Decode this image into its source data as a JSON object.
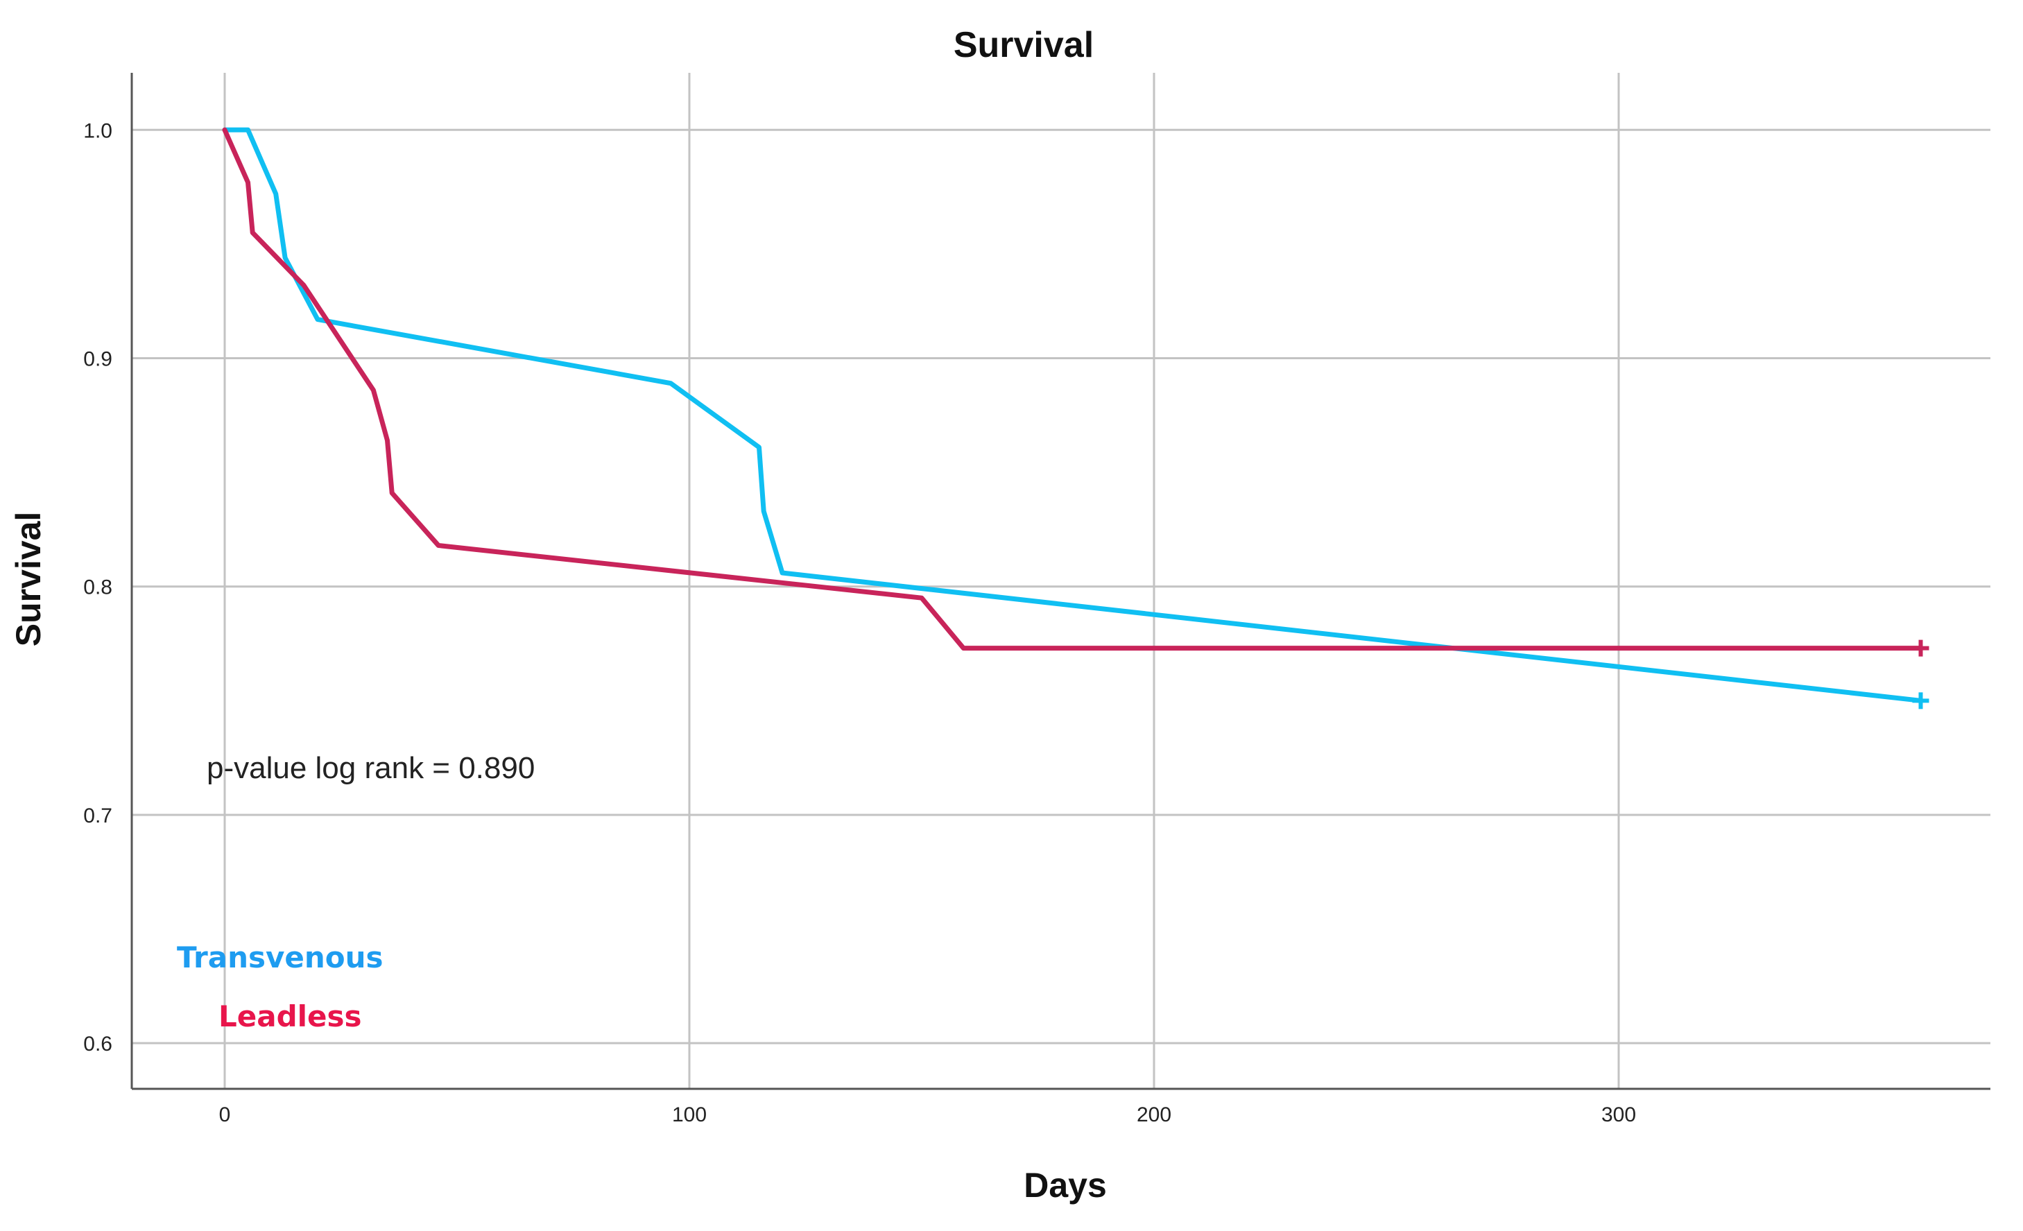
{
  "chart_data": {
    "type": "line",
    "title": "Survival",
    "xlabel": "Days",
    "ylabel": "Survival",
    "xlim": [
      -20,
      380
    ],
    "ylim": [
      0.58,
      1.025
    ],
    "x_ticks": [
      0,
      100,
      200,
      300
    ],
    "x_tick_labels": [
      "0",
      "100",
      "200",
      "300"
    ],
    "y_ticks": [
      0.6,
      0.7,
      0.8,
      0.9,
      1.0
    ],
    "y_tick_labels": [
      "0.6",
      "0.7",
      "0.8",
      "0.9",
      "1.0"
    ],
    "grid": true,
    "legend_placement": "bottom-left",
    "annotation": "p-value log rank = 0.890",
    "series": [
      {
        "name": "Transvenous",
        "color": "#10BFF2",
        "x": [
          0,
          5,
          11,
          13,
          20,
          96,
          115,
          116,
          120,
          365
        ],
        "y": [
          1.0,
          1.0,
          0.972,
          0.944,
          0.917,
          0.889,
          0.861,
          0.833,
          0.806,
          0.75
        ],
        "censor_x": [
          365
        ],
        "censor_y": [
          0.75
        ]
      },
      {
        "name": "Leadless",
        "color": "#C8245A",
        "x": [
          0,
          5,
          6,
          17,
          32,
          35,
          36,
          46,
          150,
          159,
          365
        ],
        "y": [
          1.0,
          0.977,
          0.955,
          0.932,
          0.886,
          0.864,
          0.841,
          0.818,
          0.795,
          0.773,
          0.773
        ],
        "censor_x": [
          365
        ],
        "censor_y": [
          0.773
        ]
      }
    ],
    "legend": [
      {
        "label": "Transvenous",
        "color": "#1E9CF0"
      },
      {
        "label": "Leadless",
        "color": "#E8154B"
      }
    ]
  }
}
